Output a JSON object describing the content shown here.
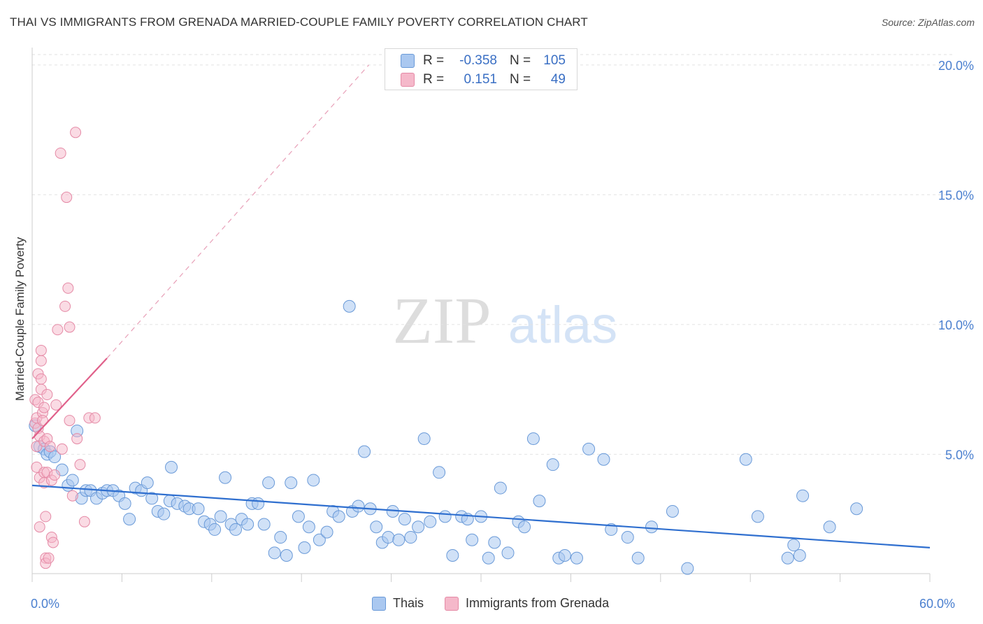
{
  "header": {
    "title": "THAI VS IMMIGRANTS FROM GRENADA MARRIED-COUPLE FAMILY POVERTY CORRELATION CHART",
    "source": "Source: ZipAtlas.com"
  },
  "watermark": {
    "zip": "ZIP",
    "atlas": "atlas"
  },
  "stats": [
    {
      "r_label": "R =",
      "r_value": "-0.358",
      "n_label": "N =",
      "n_value": "105",
      "color": "#aac8f0"
    },
    {
      "r_label": "R =",
      "r_value": "0.151",
      "n_label": "N =",
      "n_value": "49",
      "color": "#f5b8ca"
    }
  ],
  "legend": [
    {
      "name": "Thais",
      "color": "#aac8f0"
    },
    {
      "name": "Immigrants from Grenada",
      "color": "#f5b8ca"
    }
  ],
  "colors": {
    "thais_fill": "#aac8f0",
    "thais_stroke": "#6a9ad8",
    "thais_line": "#2f6fcf",
    "grenada_fill": "#f5b8ca",
    "grenada_stroke": "#e58aa6",
    "grenada_line": "#e0608a",
    "tick_text": "#4a7fcf",
    "grid": "#e2e2e2"
  },
  "chart_data": {
    "type": "scatter",
    "title": "THAI VS IMMIGRANTS FROM GRENADA MARRIED-COUPLE FAMILY POVERTY CORRELATION CHART",
    "xlabel": "",
    "ylabel": "Married-Couple Family Poverty",
    "xlim": [
      0,
      60
    ],
    "ylim": [
      0.4,
      20.4
    ],
    "x_tick_labels": [
      {
        "value": 0,
        "label": "0.0%"
      },
      {
        "value": 60,
        "label": "60.0%"
      }
    ],
    "y_tick_labels": [
      {
        "value": 5,
        "label": "5.0%"
      },
      {
        "value": 10,
        "label": "10.0%"
      },
      {
        "value": 15,
        "label": "15.0%"
      },
      {
        "value": 20,
        "label": "20.0%"
      }
    ],
    "grid": true,
    "legend_position": "bottom-center",
    "series": [
      {
        "name": "Thais",
        "r": -0.358,
        "n": 105,
        "trend": {
          "x": [
            0,
            60
          ],
          "y": [
            3.8,
            1.4
          ]
        },
        "points": [
          [
            0.2,
            6.1
          ],
          [
            0.5,
            5.3
          ],
          [
            0.8,
            5.2
          ],
          [
            1.0,
            5.0
          ],
          [
            1.2,
            5.1
          ],
          [
            1.5,
            4.9
          ],
          [
            2.0,
            4.4
          ],
          [
            2.4,
            3.8
          ],
          [
            2.7,
            4.0
          ],
          [
            3.0,
            5.9
          ],
          [
            3.3,
            3.3
          ],
          [
            3.6,
            3.6
          ],
          [
            3.9,
            3.6
          ],
          [
            4.3,
            3.3
          ],
          [
            4.7,
            3.5
          ],
          [
            5.0,
            3.6
          ],
          [
            5.4,
            3.6
          ],
          [
            5.8,
            3.4
          ],
          [
            6.2,
            3.1
          ],
          [
            6.5,
            2.5
          ],
          [
            6.9,
            3.7
          ],
          [
            7.3,
            3.6
          ],
          [
            7.7,
            3.9
          ],
          [
            8.0,
            3.3
          ],
          [
            8.4,
            2.8
          ],
          [
            8.8,
            2.7
          ],
          [
            9.2,
            3.2
          ],
          [
            9.3,
            4.5
          ],
          [
            9.7,
            3.1
          ],
          [
            10.2,
            3.0
          ],
          [
            10.5,
            2.9
          ],
          [
            11.1,
            2.9
          ],
          [
            11.5,
            2.4
          ],
          [
            11.9,
            2.3
          ],
          [
            12.2,
            2.1
          ],
          [
            12.6,
            2.6
          ],
          [
            12.9,
            4.1
          ],
          [
            13.3,
            2.3
          ],
          [
            13.6,
            2.1
          ],
          [
            14.0,
            2.5
          ],
          [
            14.4,
            2.3
          ],
          [
            14.7,
            3.1
          ],
          [
            15.1,
            3.1
          ],
          [
            15.5,
            2.3
          ],
          [
            15.8,
            3.9
          ],
          [
            16.2,
            1.2
          ],
          [
            16.6,
            1.8
          ],
          [
            17.0,
            1.1
          ],
          [
            17.3,
            3.9
          ],
          [
            17.8,
            2.6
          ],
          [
            18.2,
            1.4
          ],
          [
            18.5,
            2.2
          ],
          [
            18.8,
            4.0
          ],
          [
            19.2,
            1.7
          ],
          [
            19.7,
            2.0
          ],
          [
            20.1,
            2.8
          ],
          [
            20.5,
            2.6
          ],
          [
            21.2,
            10.7
          ],
          [
            21.4,
            2.8
          ],
          [
            21.8,
            3.0
          ],
          [
            22.2,
            5.1
          ],
          [
            22.6,
            2.9
          ],
          [
            23.0,
            2.2
          ],
          [
            23.4,
            1.6
          ],
          [
            23.8,
            1.8
          ],
          [
            24.1,
            2.8
          ],
          [
            24.5,
            1.7
          ],
          [
            24.9,
            2.5
          ],
          [
            25.3,
            1.8
          ],
          [
            25.8,
            2.2
          ],
          [
            26.2,
            5.6
          ],
          [
            26.6,
            2.4
          ],
          [
            27.2,
            4.3
          ],
          [
            27.6,
            2.6
          ],
          [
            28.1,
            1.1
          ],
          [
            28.7,
            2.6
          ],
          [
            29.1,
            2.5
          ],
          [
            29.4,
            1.7
          ],
          [
            30.0,
            2.6
          ],
          [
            30.5,
            1.0
          ],
          [
            30.9,
            1.6
          ],
          [
            31.3,
            3.7
          ],
          [
            31.8,
            1.2
          ],
          [
            32.5,
            2.4
          ],
          [
            32.9,
            2.2
          ],
          [
            33.5,
            5.6
          ],
          [
            33.9,
            3.2
          ],
          [
            34.8,
            4.6
          ],
          [
            35.2,
            1.0
          ],
          [
            35.6,
            1.1
          ],
          [
            36.4,
            1.0
          ],
          [
            37.2,
            5.2
          ],
          [
            38.2,
            4.8
          ],
          [
            38.7,
            2.1
          ],
          [
            39.8,
            1.8
          ],
          [
            40.5,
            1.0
          ],
          [
            41.4,
            2.2
          ],
          [
            42.8,
            2.8
          ],
          [
            43.8,
            0.6
          ],
          [
            47.7,
            4.8
          ],
          [
            48.5,
            2.6
          ],
          [
            50.5,
            1.0
          ],
          [
            50.9,
            1.5
          ],
          [
            51.3,
            1.1
          ],
          [
            51.5,
            3.4
          ],
          [
            53.3,
            2.2
          ],
          [
            55.1,
            2.9
          ]
        ]
      },
      {
        "name": "Immigrants from Grenada",
        "r": 0.151,
        "n": 49,
        "trend": {
          "x": [
            0,
            5
          ],
          "y": [
            5.6,
            8.7
          ]
        },
        "trend_extension": {
          "x": [
            5,
            22.5
          ],
          "y": [
            8.7,
            20.0
          ]
        },
        "points": [
          [
            0.2,
            7.1
          ],
          [
            0.2,
            6.2
          ],
          [
            0.3,
            6.4
          ],
          [
            0.3,
            5.3
          ],
          [
            0.3,
            4.5
          ],
          [
            0.4,
            8.1
          ],
          [
            0.4,
            7.0
          ],
          [
            0.4,
            6.0
          ],
          [
            0.5,
            5.7
          ],
          [
            0.5,
            4.1
          ],
          [
            0.5,
            2.2
          ],
          [
            0.6,
            8.6
          ],
          [
            0.6,
            9.0
          ],
          [
            0.6,
            7.9
          ],
          [
            0.6,
            7.5
          ],
          [
            0.7,
            6.6
          ],
          [
            0.7,
            6.3
          ],
          [
            0.8,
            6.8
          ],
          [
            0.8,
            5.5
          ],
          [
            0.8,
            4.3
          ],
          [
            0.8,
            3.9
          ],
          [
            0.9,
            2.6
          ],
          [
            0.9,
            1.0
          ],
          [
            0.9,
            0.8
          ],
          [
            1.0,
            4.3
          ],
          [
            1.0,
            7.3
          ],
          [
            1.0,
            5.6
          ],
          [
            1.1,
            1.0
          ],
          [
            1.2,
            5.3
          ],
          [
            1.3,
            4.0
          ],
          [
            1.3,
            1.8
          ],
          [
            1.5,
            4.2
          ],
          [
            1.6,
            6.9
          ],
          [
            1.7,
            9.8
          ],
          [
            1.9,
            16.6
          ],
          [
            2.0,
            5.2
          ],
          [
            2.2,
            10.7
          ],
          [
            2.3,
            14.9
          ],
          [
            2.4,
            11.4
          ],
          [
            2.5,
            6.3
          ],
          [
            2.5,
            9.9
          ],
          [
            2.7,
            3.4
          ],
          [
            2.9,
            17.4
          ],
          [
            3.0,
            5.6
          ],
          [
            3.2,
            4.6
          ],
          [
            3.5,
            2.4
          ],
          [
            3.8,
            6.4
          ],
          [
            4.2,
            6.4
          ],
          [
            1.4,
            1.6
          ]
        ]
      }
    ]
  }
}
